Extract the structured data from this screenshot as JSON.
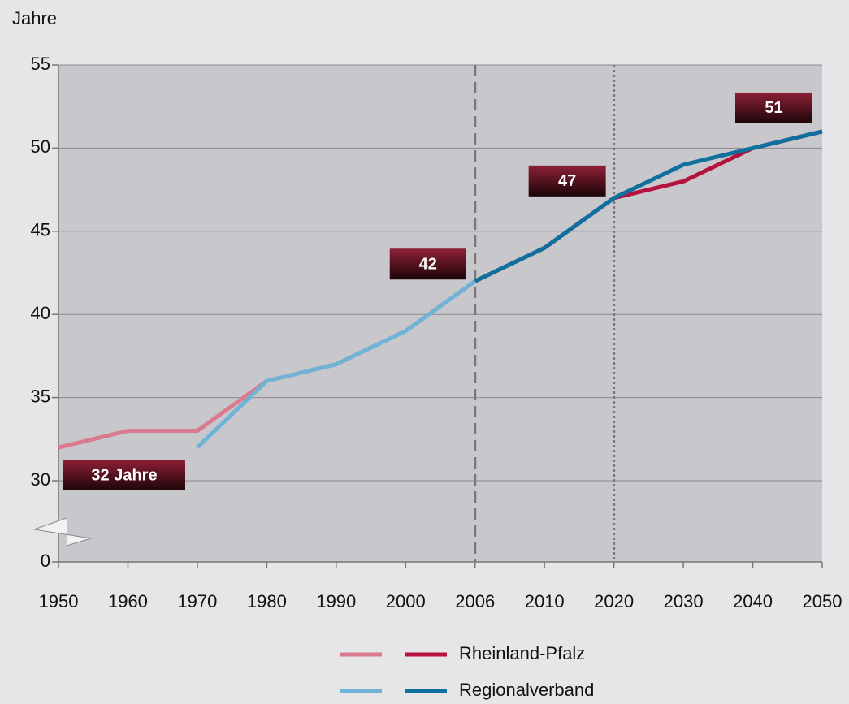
{
  "chart_data": {
    "type": "line",
    "y_label": "Jahre",
    "categories": [
      "1950",
      "1960",
      "1970",
      "1980",
      "1990",
      "2000",
      "2006",
      "2010",
      "2020",
      "2030",
      "2040",
      "2050"
    ],
    "series": [
      {
        "name": "Rheinland-Pfalz",
        "color": "#b5123f",
        "light_color": "#d97a91",
        "values": [
          32,
          33,
          33,
          36,
          37,
          39,
          42,
          44,
          47,
          48,
          50,
          51
        ]
      },
      {
        "name": "Regionalverband",
        "color": "#0f6f9e",
        "light_color": "#6fb3d6",
        "values": [
          null,
          null,
          32,
          36,
          37,
          39,
          42,
          44,
          47,
          49,
          50,
          51
        ]
      }
    ],
    "projection_start": "2006",
    "vlines": [
      {
        "x": "2006",
        "style": "dashed"
      },
      {
        "x": "2020",
        "style": "dotted"
      }
    ],
    "annotations": [
      {
        "text": "32 Jahre",
        "x": "1950"
      },
      {
        "text": "42",
        "x": "2006"
      },
      {
        "text": "47",
        "x": "2020"
      },
      {
        "text": "51",
        "x": "2050"
      }
    ],
    "ylim": [
      30,
      55
    ],
    "yticks": [
      0,
      30,
      35,
      40,
      45,
      50,
      55
    ],
    "axis_break": true,
    "grid": true
  }
}
